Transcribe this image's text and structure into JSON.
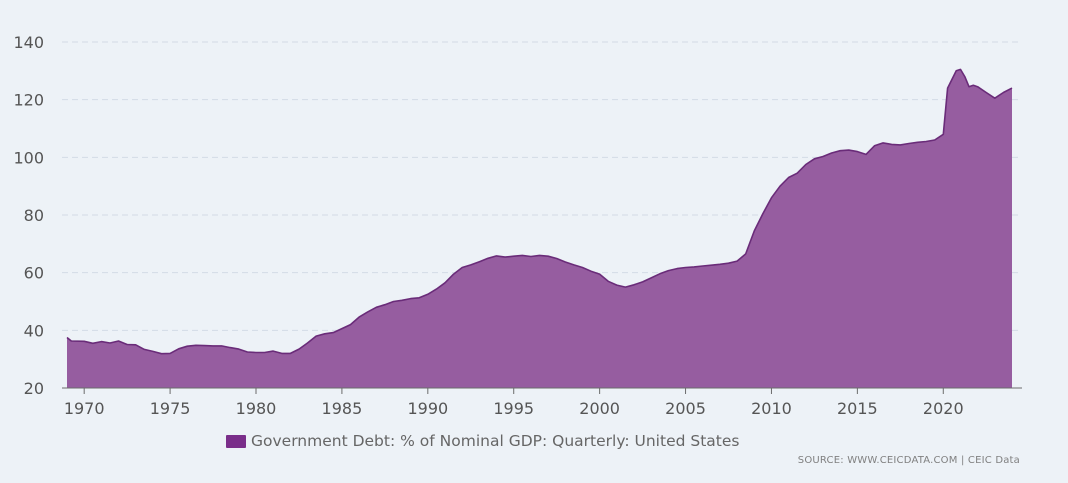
{
  "colors": {
    "background": "#edf2f7",
    "area_fill": "#965da0",
    "area_line": "#6a2c79",
    "legend_swatch": "#7a2e8a",
    "grid": "#d3dbe6",
    "tick_text": "#555555"
  },
  "legend": {
    "label": "Government Debt: % of Nominal GDP: Quarterly: United States"
  },
  "source": {
    "text": "SOURCE: WWW.CEICDATA.COM | CEIC Data"
  },
  "chart_data": {
    "type": "area",
    "title": "",
    "xlabel": "",
    "ylabel": "",
    "xlim": [
      1969,
      2024
    ],
    "ylim": [
      20,
      145
    ],
    "yticks": [
      20,
      40,
      60,
      80,
      100,
      120,
      140
    ],
    "xticks": [
      1970,
      1975,
      1980,
      1985,
      1990,
      1995,
      2000,
      2005,
      2010,
      2015,
      2020
    ],
    "grid": true,
    "legend_position": "bottom",
    "series": [
      {
        "name": "Government Debt: % of Nominal GDP: Quarterly: United States",
        "points": [
          [
            1969.0,
            37.5
          ],
          [
            1969.25,
            36.3
          ],
          [
            1970.0,
            36.2
          ],
          [
            1970.5,
            35.5
          ],
          [
            1971.0,
            36.1
          ],
          [
            1971.5,
            35.6
          ],
          [
            1972.0,
            36.3
          ],
          [
            1972.5,
            35.1
          ],
          [
            1973.0,
            35.0
          ],
          [
            1973.5,
            33.4
          ],
          [
            1974.0,
            32.7
          ],
          [
            1974.5,
            31.9
          ],
          [
            1975.0,
            32.0
          ],
          [
            1975.5,
            33.6
          ],
          [
            1976.0,
            34.5
          ],
          [
            1976.5,
            34.8
          ],
          [
            1977.0,
            34.7
          ],
          [
            1977.5,
            34.6
          ],
          [
            1978.0,
            34.6
          ],
          [
            1978.5,
            34.0
          ],
          [
            1979.0,
            33.5
          ],
          [
            1979.5,
            32.5
          ],
          [
            1980.0,
            32.3
          ],
          [
            1980.5,
            32.3
          ],
          [
            1981.0,
            32.8
          ],
          [
            1981.5,
            32.0
          ],
          [
            1982.0,
            32.0
          ],
          [
            1982.5,
            33.5
          ],
          [
            1983.0,
            35.6
          ],
          [
            1983.5,
            38.0
          ],
          [
            1984.0,
            38.8
          ],
          [
            1984.5,
            39.2
          ],
          [
            1985.0,
            40.6
          ],
          [
            1985.5,
            42.0
          ],
          [
            1986.0,
            44.6
          ],
          [
            1986.5,
            46.4
          ],
          [
            1987.0,
            48.0
          ],
          [
            1987.5,
            48.9
          ],
          [
            1988.0,
            50.0
          ],
          [
            1988.5,
            50.4
          ],
          [
            1989.0,
            51.0
          ],
          [
            1989.5,
            51.3
          ],
          [
            1990.0,
            52.5
          ],
          [
            1990.5,
            54.3
          ],
          [
            1991.0,
            56.5
          ],
          [
            1991.5,
            59.5
          ],
          [
            1992.0,
            61.8
          ],
          [
            1992.5,
            62.7
          ],
          [
            1993.0,
            63.8
          ],
          [
            1993.5,
            65.0
          ],
          [
            1994.0,
            65.8
          ],
          [
            1994.5,
            65.4
          ],
          [
            1995.0,
            65.7
          ],
          [
            1995.5,
            66.0
          ],
          [
            1996.0,
            65.6
          ],
          [
            1996.5,
            66.0
          ],
          [
            1997.0,
            65.7
          ],
          [
            1997.5,
            64.9
          ],
          [
            1998.0,
            63.7
          ],
          [
            1998.5,
            62.7
          ],
          [
            1999.0,
            61.8
          ],
          [
            1999.5,
            60.5
          ],
          [
            2000.0,
            59.5
          ],
          [
            2000.5,
            57.0
          ],
          [
            2001.0,
            55.7
          ],
          [
            2001.5,
            55.0
          ],
          [
            2002.0,
            55.8
          ],
          [
            2002.5,
            56.8
          ],
          [
            2003.0,
            58.2
          ],
          [
            2003.5,
            59.6
          ],
          [
            2004.0,
            60.7
          ],
          [
            2004.5,
            61.4
          ],
          [
            2005.0,
            61.8
          ],
          [
            2005.5,
            62.0
          ],
          [
            2006.0,
            62.3
          ],
          [
            2006.5,
            62.6
          ],
          [
            2007.0,
            62.9
          ],
          [
            2007.5,
            63.3
          ],
          [
            2008.0,
            64.0
          ],
          [
            2008.5,
            66.5
          ],
          [
            2009.0,
            74.5
          ],
          [
            2009.5,
            80.5
          ],
          [
            2010.0,
            86.0
          ],
          [
            2010.5,
            90.0
          ],
          [
            2011.0,
            93.0
          ],
          [
            2011.5,
            94.5
          ],
          [
            2012.0,
            97.5
          ],
          [
            2012.5,
            99.5
          ],
          [
            2013.0,
            100.3
          ],
          [
            2013.5,
            101.5
          ],
          [
            2014.0,
            102.3
          ],
          [
            2014.5,
            102.5
          ],
          [
            2015.0,
            102.0
          ],
          [
            2015.5,
            101.0
          ],
          [
            2016.0,
            104.0
          ],
          [
            2016.5,
            105.0
          ],
          [
            2017.0,
            104.5
          ],
          [
            2017.5,
            104.3
          ],
          [
            2018.0,
            104.8
          ],
          [
            2018.5,
            105.2
          ],
          [
            2019.0,
            105.5
          ],
          [
            2019.5,
            106.0
          ],
          [
            2020.0,
            108.0
          ],
          [
            2020.25,
            124.0
          ],
          [
            2020.5,
            127.0
          ],
          [
            2020.75,
            130.0
          ],
          [
            2021.0,
            130.5
          ],
          [
            2021.25,
            128.0
          ],
          [
            2021.5,
            124.5
          ],
          [
            2021.75,
            125.0
          ],
          [
            2022.0,
            124.5
          ],
          [
            2022.5,
            122.5
          ],
          [
            2023.0,
            120.5
          ],
          [
            2023.5,
            122.5
          ],
          [
            2024.0,
            124.0
          ]
        ]
      }
    ]
  }
}
